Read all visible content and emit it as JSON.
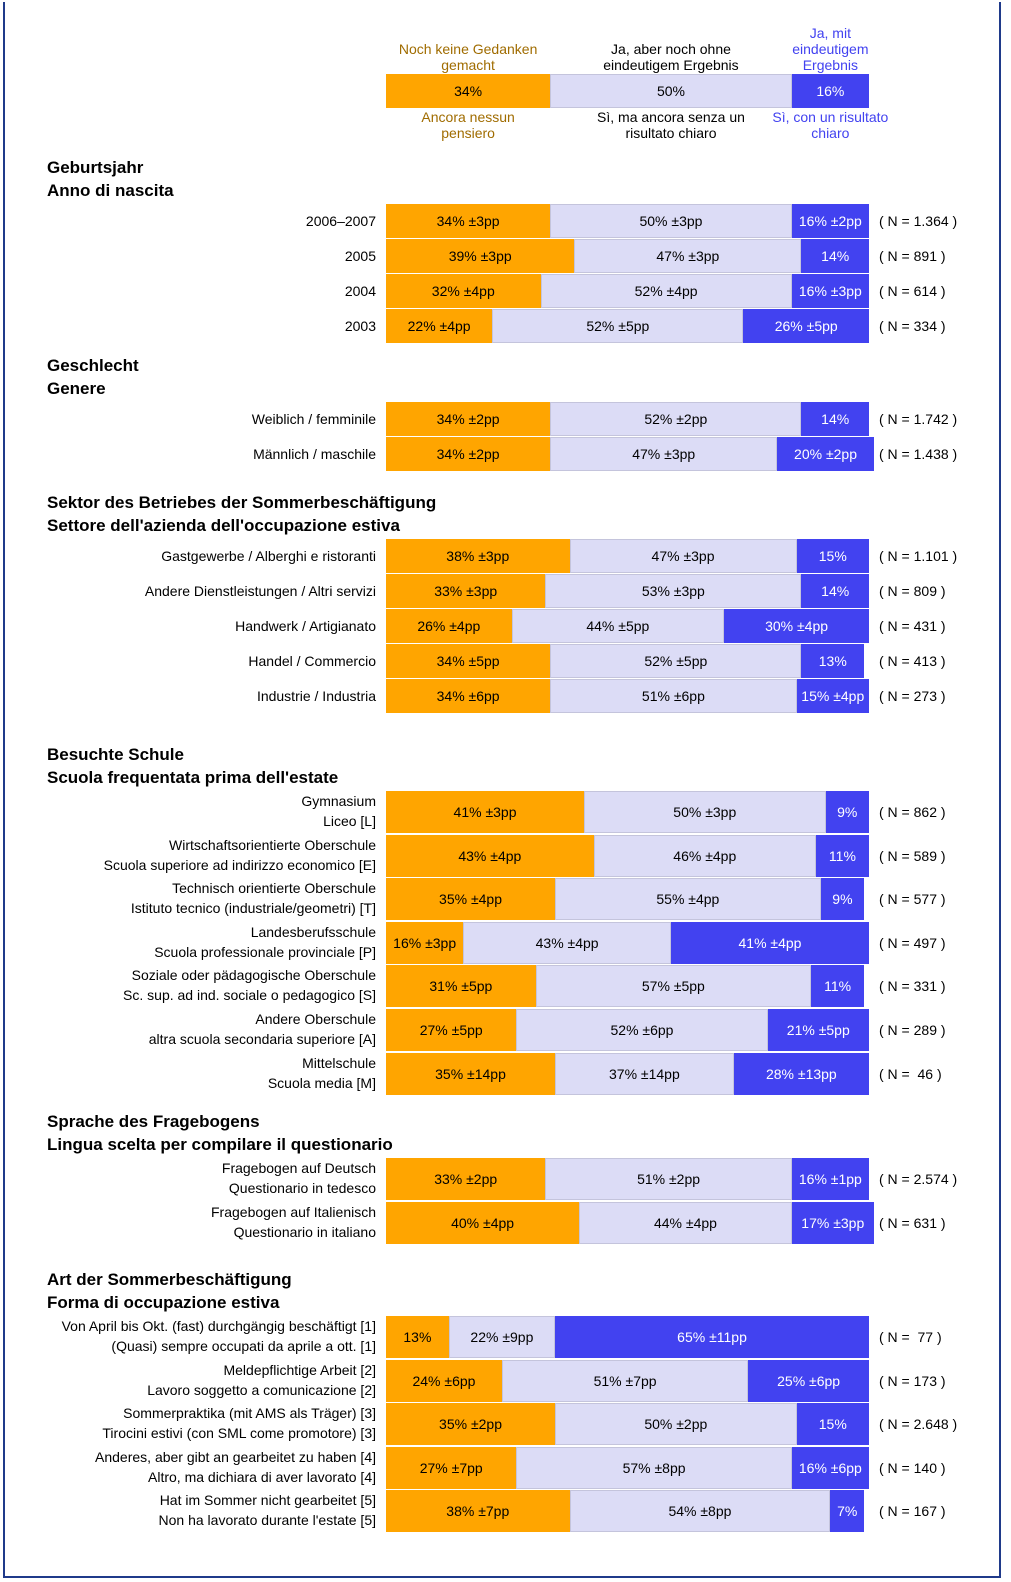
{
  "chart_data": {
    "type": "bar",
    "series": [
      {
        "name": "Noch keine Gedanken gemacht",
        "name_it": "Ancora nessun pensiero",
        "color": "#ffa500",
        "label_color": "#a06c00",
        "text_color": "#000000"
      },
      {
        "name": "Ja, aber noch ohne eindeutigem Ergebnis",
        "name_it": "Sì, ma ancora senza un risultato chiaro",
        "color": "#dcdcf6",
        "label_color": "#000000",
        "text_color": "#000000"
      },
      {
        "name": "Ja, mit eindeutigem Ergebnis",
        "name_it": "Sì, con un risultato chiaro",
        "color": "#4242f0",
        "label_color": "#4242f0",
        "text_color": "#ffffff"
      }
    ],
    "total": {
      "values": [
        34,
        50,
        16
      ],
      "value_labels": [
        "34%",
        "50%",
        "16%"
      ]
    },
    "groups": [
      {
        "title": [
          "Geburtsjahr",
          "Anno di nascita"
        ],
        "rows": [
          {
            "label": [
              "2006–2007"
            ],
            "values": [
              34,
              50,
              16
            ],
            "value_labels": [
              "34% ±3pp",
              "50% ±3pp",
              "16% ±2pp"
            ],
            "n": "( N = 1.364 )"
          },
          {
            "label": [
              "2005"
            ],
            "values": [
              39,
              47,
              14
            ],
            "value_labels": [
              "39% ±3pp",
              "47% ±3pp",
              "14%"
            ],
            "n": "( N = 891 )"
          },
          {
            "label": [
              "2004"
            ],
            "values": [
              32,
              52,
              16
            ],
            "value_labels": [
              "32% ±4pp",
              "52% ±4pp",
              "16% ±3pp"
            ],
            "n": "( N = 614 )"
          },
          {
            "label": [
              "2003"
            ],
            "values": [
              22,
              52,
              26
            ],
            "value_labels": [
              "22% ±4pp",
              "52% ±5pp",
              "26% ±5pp"
            ],
            "n": "( N = 334 )"
          }
        ]
      },
      {
        "title": [
          "Geschlecht",
          "Genere"
        ],
        "rows": [
          {
            "label": [
              "Weiblich / femminile"
            ],
            "values": [
              34,
              52,
              14
            ],
            "value_labels": [
              "34% ±2pp",
              "52% ±2pp",
              "14%"
            ],
            "n": "( N = 1.742 )"
          },
          {
            "label": [
              "Männlich / maschile"
            ],
            "values": [
              34,
              47,
              20
            ],
            "value_labels": [
              "34% ±2pp",
              "47% ±3pp",
              "20% ±2pp"
            ],
            "n": "( N = 1.438 )"
          }
        ]
      },
      {
        "title": [
          "Sektor des Betriebes der Sommerbeschäftigung",
          "Settore dell'azienda dell'occupazione estiva"
        ],
        "rows": [
          {
            "label": [
              "Gastgewerbe / Alberghi e ristoranti"
            ],
            "values": [
              38,
              47,
              15
            ],
            "value_labels": [
              "38% ±3pp",
              "47% ±3pp",
              "15%"
            ],
            "n": "( N = 1.101 )"
          },
          {
            "label": [
              "Andere Dienstleistungen / Altri servizi"
            ],
            "values": [
              33,
              53,
              14
            ],
            "value_labels": [
              "33% ±3pp",
              "53% ±3pp",
              "14%"
            ],
            "n": "( N = 809 )"
          },
          {
            "label": [
              "Handwerk / Artigianato"
            ],
            "values": [
              26,
              44,
              30
            ],
            "value_labels": [
              "26% ±4pp",
              "44% ±5pp",
              "30% ±4pp"
            ],
            "n": "( N = 431 )"
          },
          {
            "label": [
              "Handel / Commercio"
            ],
            "values": [
              34,
              52,
              13
            ],
            "value_labels": [
              "34% ±5pp",
              "52% ±5pp",
              "13%"
            ],
            "n": "( N = 413 )"
          },
          {
            "label": [
              "Industrie / Industria"
            ],
            "values": [
              34,
              51,
              15
            ],
            "value_labels": [
              "34% ±6pp",
              "51% ±6pp",
              "15% ±4pp"
            ],
            "n": "( N = 273 )"
          }
        ]
      },
      {
        "title": [
          "Besuchte Schule",
          "Scuola frequentata prima dell'estate"
        ],
        "rows": [
          {
            "label": [
              "Gymnasium",
              "Liceo [L]"
            ],
            "values": [
              41,
              50,
              9
            ],
            "value_labels": [
              "41% ±3pp",
              "50% ±3pp",
              "9%"
            ],
            "n": "( N = 862 )"
          },
          {
            "label": [
              "Wirtschaftsorientierte Oberschule",
              "Scuola superiore ad indirizzo economico [E]"
            ],
            "values": [
              43,
              46,
              11
            ],
            "value_labels": [
              "43% ±4pp",
              "46% ±4pp",
              "11%"
            ],
            "n": "( N = 589 )"
          },
          {
            "label": [
              "Technisch orientierte Oberschule",
              "Istituto tecnico (industriale/geometri) [T]"
            ],
            "values": [
              35,
              55,
              9
            ],
            "value_labels": [
              "35% ±4pp",
              "55% ±4pp",
              "9%"
            ],
            "n": "( N = 577 )"
          },
          {
            "label": [
              "Landesberufsschule",
              "Scuola professionale provinciale [P]"
            ],
            "values": [
              16,
              43,
              41
            ],
            "value_labels": [
              "16% ±3pp",
              "43% ±4pp",
              "41% ±4pp"
            ],
            "n": "( N = 497 )"
          },
          {
            "label": [
              "Soziale oder pädagogische Oberschule",
              "Sc. sup. ad ind. sociale o pedagogico [S]"
            ],
            "values": [
              31,
              57,
              11
            ],
            "value_labels": [
              "31% ±5pp",
              "57% ±5pp",
              "11%"
            ],
            "n": "( N = 331 )"
          },
          {
            "label": [
              "Andere Oberschule",
              "altra scuola secondaria superiore [A]"
            ],
            "values": [
              27,
              52,
              21
            ],
            "value_labels": [
              "27% ±5pp",
              "52% ±6pp",
              "21% ±5pp"
            ],
            "n": "( N = 289 )"
          },
          {
            "label": [
              "Mittelschule",
              "Scuola media [M]"
            ],
            "values": [
              35,
              37,
              28
            ],
            "value_labels": [
              "35% ±14pp",
              "37% ±14pp",
              "28% ±13pp"
            ],
            "n": "( N =  46 )"
          }
        ]
      },
      {
        "title": [
          "Sprache des Fragebogens",
          "Lingua scelta per compilare il questionario"
        ],
        "rows": [
          {
            "label": [
              "Fragebogen auf Deutsch",
              "Questionario in tedesco"
            ],
            "values": [
              33,
              51,
              16
            ],
            "value_labels": [
              "33% ±2pp",
              "51% ±2pp",
              "16% ±1pp"
            ],
            "n": "( N = 2.574 )"
          },
          {
            "label": [
              "Fragebogen auf Italienisch",
              "Questionario in italiano"
            ],
            "values": [
              40,
              44,
              17
            ],
            "value_labels": [
              "40% ±4pp",
              "44% ±4pp",
              "17% ±3pp"
            ],
            "n": "( N = 631 )"
          }
        ]
      },
      {
        "title": [
          "Art der Sommerbeschäftigung",
          "Forma di occupazione estiva"
        ],
        "rows": [
          {
            "label": [
              "Von April bis Okt. (fast) durchgängig beschäftigt [1]",
              "(Quasi) sempre occupati da aprile a ott. [1]"
            ],
            "values": [
              13,
              22,
              65
            ],
            "value_labels": [
              "13%",
              "22% ±9pp",
              "65% ±11pp"
            ],
            "n": "( N =  77 )"
          },
          {
            "label": [
              "Meldepflichtige Arbeit [2]",
              "Lavoro soggetto a comunicazione [2]"
            ],
            "values": [
              24,
              51,
              25
            ],
            "value_labels": [
              "24% ±6pp",
              "51% ±7pp",
              "25% ±6pp"
            ],
            "n": "( N = 173 )"
          },
          {
            "label": [
              "Sommerpraktika (mit AMS als Träger) [3]",
              "Tirocini estivi (con SML come promotore) [3]"
            ],
            "values": [
              35,
              50,
              15
            ],
            "value_labels": [
              "35% ±2pp",
              "50% ±2pp",
              "15%"
            ],
            "n": "( N = 2.648 )"
          },
          {
            "label": [
              "Anderes, aber gibt an gearbeitet zu haben [4]",
              "Altro, ma dichiara di aver lavorato [4]"
            ],
            "values": [
              27,
              57,
              16
            ],
            "value_labels": [
              "27% ±7pp",
              "57% ±8pp",
              "16% ±6pp"
            ],
            "n": "( N = 140 )"
          },
          {
            "label": [
              "Hat im Sommer nicht gearbeitet [5]",
              "Non ha lavorato durante l'estate [5]"
            ],
            "values": [
              38,
              54,
              7
            ],
            "value_labels": [
              "38% ±7pp",
              "54% ±8pp",
              "7%"
            ],
            "n": "( N = 167 )"
          }
        ]
      }
    ]
  }
}
